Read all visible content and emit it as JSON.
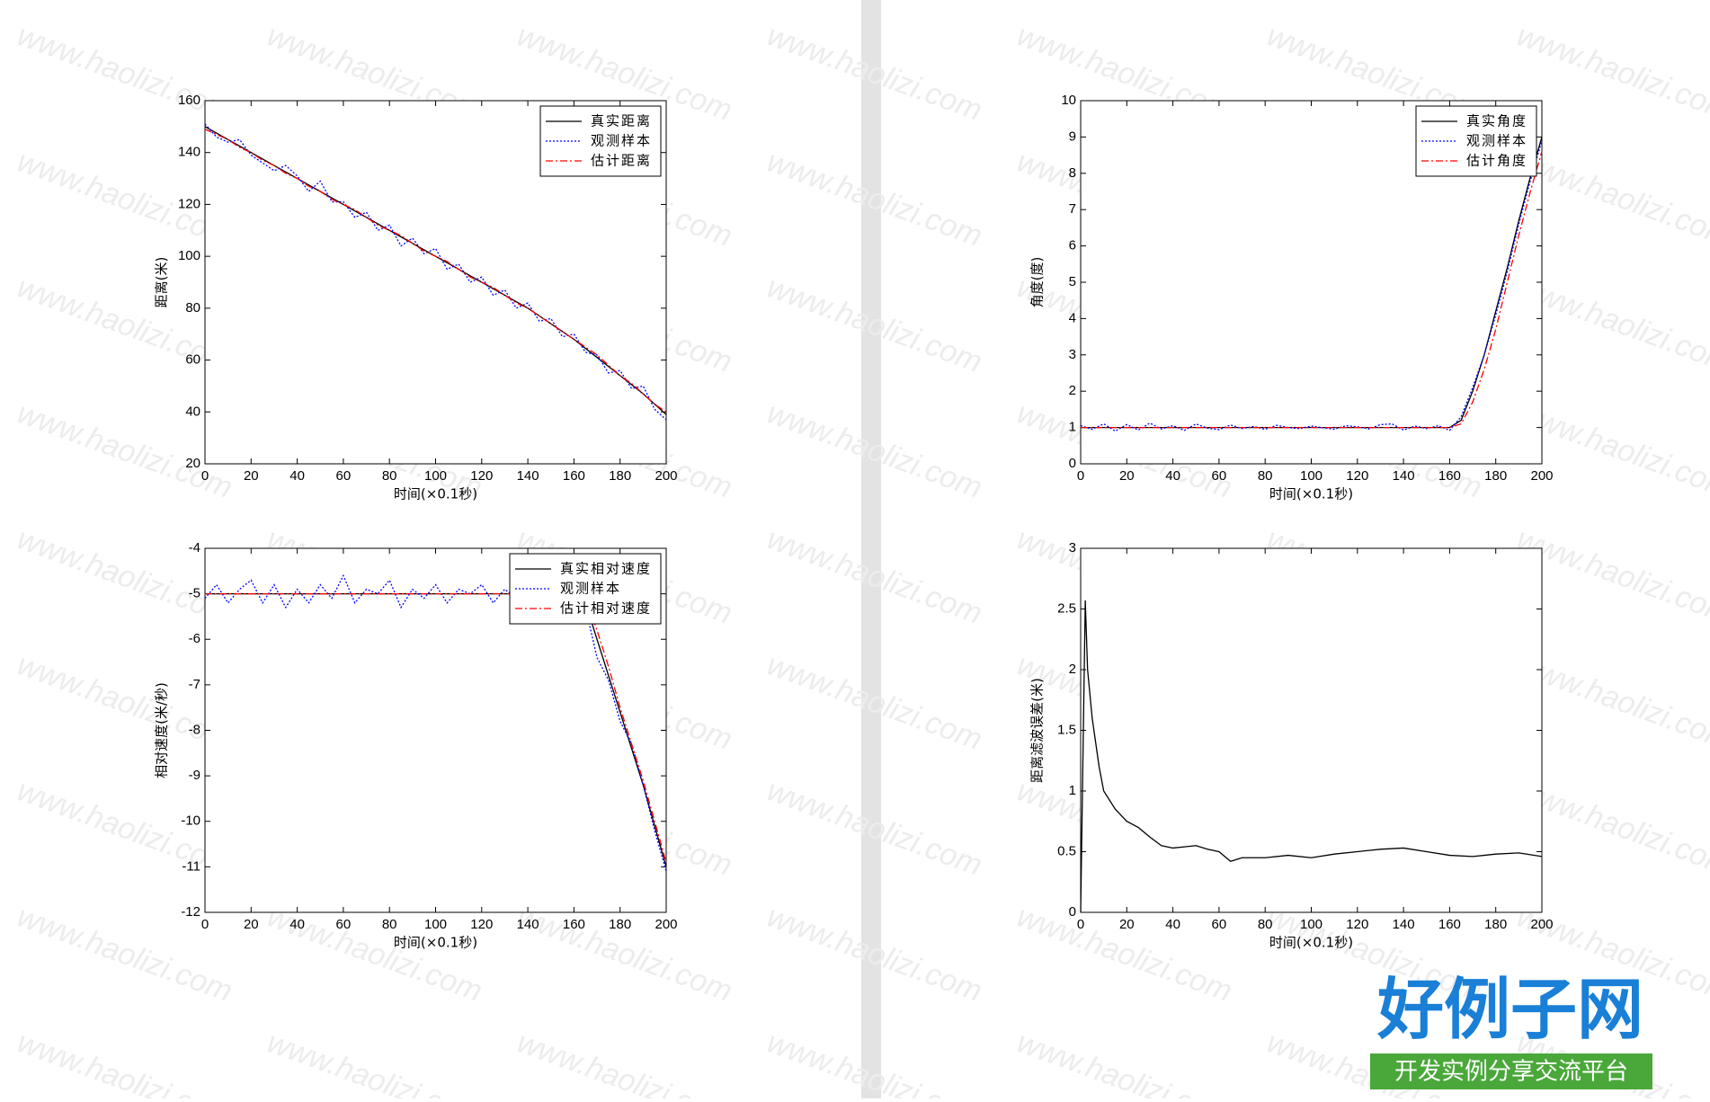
{
  "chart_data": [
    {
      "type": "line",
      "ylabel": "距离(米)",
      "xlabel": "时间(×0.1秒)",
      "xlim": [
        0,
        200
      ],
      "ylim": [
        20,
        160
      ],
      "xticks": [
        0,
        20,
        40,
        60,
        80,
        100,
        120,
        140,
        160,
        180,
        200
      ],
      "yticks": [
        20,
        40,
        60,
        80,
        100,
        120,
        140,
        160
      ],
      "legend": "upper right",
      "x": [
        0,
        5,
        10,
        15,
        20,
        25,
        30,
        35,
        40,
        45,
        50,
        55,
        60,
        65,
        70,
        75,
        80,
        85,
        90,
        95,
        100,
        105,
        110,
        115,
        120,
        125,
        130,
        135,
        140,
        145,
        150,
        155,
        160,
        165,
        170,
        175,
        180,
        185,
        190,
        195,
        200
      ],
      "series": [
        {
          "name": "真实距离",
          "color": "#000000",
          "style": "solid",
          "values": [
            150,
            147.5,
            145,
            142.5,
            140,
            137.5,
            135,
            132.5,
            130,
            127.5,
            125,
            122.5,
            120,
            117.5,
            115,
            112.5,
            110,
            107.5,
            105,
            102.5,
            100,
            97.5,
            95,
            92.5,
            90,
            87.5,
            85,
            82.5,
            80,
            77,
            74,
            71,
            68,
            64.5,
            61,
            57.5,
            54,
            50.5,
            47,
            43,
            39
          ]
        },
        {
          "name": "观测样本",
          "color": "#0000ff",
          "style": "dotted",
          "values": [
            151,
            146,
            144,
            145,
            139,
            136,
            133,
            135,
            131,
            125,
            129,
            121,
            121,
            115,
            117,
            110,
            112,
            104,
            107,
            101,
            103,
            95,
            97,
            90,
            92,
            85,
            87,
            80,
            82,
            75,
            76,
            69,
            70,
            63,
            62,
            55,
            56,
            49,
            50,
            41,
            37
          ]
        },
        {
          "name": "估计距离",
          "color": "#ff0000",
          "style": "dashdot",
          "values": [
            149,
            147,
            145,
            142,
            140,
            137,
            135,
            132,
            130,
            127,
            125,
            122,
            120,
            118,
            115,
            112,
            110,
            108,
            105,
            102,
            100,
            98,
            95,
            92,
            90,
            88,
            85,
            82,
            80,
            77,
            74,
            71,
            68,
            65,
            62,
            58,
            54,
            51,
            47,
            43,
            40
          ]
        }
      ]
    },
    {
      "type": "line",
      "ylabel": "角度(度)",
      "xlabel": "时间(×0.1秒)",
      "xlim": [
        0,
        200
      ],
      "ylim": [
        0,
        10
      ],
      "xticks": [
        0,
        20,
        40,
        60,
        80,
        100,
        120,
        140,
        160,
        180,
        200
      ],
      "yticks": [
        0,
        1,
        2,
        3,
        4,
        5,
        6,
        7,
        8,
        9,
        10
      ],
      "legend": "upper right",
      "x": [
        0,
        5,
        10,
        15,
        20,
        25,
        30,
        35,
        40,
        45,
        50,
        55,
        60,
        65,
        70,
        75,
        80,
        85,
        90,
        95,
        100,
        105,
        110,
        115,
        120,
        125,
        130,
        135,
        140,
        145,
        150,
        155,
        160,
        165,
        170,
        175,
        180,
        185,
        190,
        195,
        200
      ],
      "series": [
        {
          "name": "真实角度",
          "color": "#000000",
          "style": "solid",
          "values": [
            1,
            1,
            1,
            1,
            1,
            1,
            1,
            1,
            1,
            1,
            1,
            1,
            1,
            1,
            1,
            1,
            1,
            1,
            1,
            1,
            1,
            1,
            1,
            1,
            1,
            1,
            1,
            1,
            1,
            1,
            1,
            1,
            1,
            1.2,
            2.0,
            3.0,
            4.2,
            5.4,
            6.7,
            7.9,
            9.0
          ]
        },
        {
          "name": "观测样本",
          "color": "#0000ff",
          "style": "dotted",
          "values": [
            1.05,
            0.95,
            1.1,
            0.9,
            1.08,
            0.93,
            1.12,
            0.96,
            1.05,
            0.92,
            1.1,
            0.98,
            0.94,
            1.07,
            0.97,
            1.03,
            0.95,
            1.06,
            1.0,
            0.97,
            1.04,
            0.99,
            0.95,
            1.05,
            1.02,
            0.96,
            1.08,
            1.1,
            0.93,
            1.04,
            0.97,
            1.05,
            0.92,
            1.3,
            2.1,
            3.0,
            4.1,
            5.3,
            6.6,
            7.8,
            8.9
          ]
        },
        {
          "name": "估计角度",
          "color": "#ff0000",
          "style": "dashdot",
          "values": [
            1,
            1,
            1,
            1,
            1,
            1,
            1,
            1,
            1,
            1,
            1,
            1,
            1,
            1,
            1,
            1,
            1,
            1,
            1,
            1,
            1,
            1,
            1,
            1,
            1,
            1,
            1,
            1,
            1,
            1,
            1,
            1,
            1,
            1.1,
            1.7,
            2.6,
            3.7,
            5.0,
            6.3,
            7.5,
            8.6
          ]
        }
      ]
    },
    {
      "type": "line",
      "ylabel": "相对速度(米/秒)",
      "xlabel": "时间(×0.1秒)",
      "xlim": [
        0,
        200
      ],
      "ylim": [
        -12,
        -4
      ],
      "xticks": [
        0,
        20,
        40,
        60,
        80,
        100,
        120,
        140,
        160,
        180,
        200
      ],
      "yticks": [
        -12,
        -11,
        -10,
        -9,
        -8,
        -7,
        -6,
        -5,
        -4
      ],
      "legend": "upper right",
      "x": [
        0,
        5,
        10,
        15,
        20,
        25,
        30,
        35,
        40,
        45,
        50,
        55,
        60,
        65,
        70,
        75,
        80,
        85,
        90,
        95,
        100,
        105,
        110,
        115,
        120,
        125,
        130,
        135,
        140,
        145,
        150,
        155,
        160,
        165,
        170,
        175,
        180,
        185,
        190,
        195,
        200
      ],
      "series": [
        {
          "name": "真实相对速度",
          "color": "#000000",
          "style": "solid",
          "values": [
            -5,
            -5,
            -5,
            -5,
            -5,
            -5,
            -5,
            -5,
            -5,
            -5,
            -5,
            -5,
            -5,
            -5,
            -5,
            -5,
            -5,
            -5,
            -5,
            -5,
            -5,
            -5,
            -5,
            -5,
            -5,
            -5,
            -5,
            -5,
            -5,
            -5,
            -5,
            -5,
            -5,
            -5.2,
            -6.0,
            -6.8,
            -7.6,
            -8.4,
            -9.2,
            -10.1,
            -11
          ]
        },
        {
          "name": "观测样本",
          "color": "#0000ff",
          "style": "dotted",
          "values": [
            -5.1,
            -4.8,
            -5.2,
            -4.9,
            -4.7,
            -5.2,
            -4.8,
            -5.3,
            -4.9,
            -5.2,
            -4.8,
            -5.1,
            -4.6,
            -5.2,
            -4.9,
            -5.0,
            -4.7,
            -5.3,
            -4.9,
            -5.1,
            -4.8,
            -5.2,
            -4.9,
            -5.0,
            -4.8,
            -5.2,
            -4.9,
            -5.1,
            -4.8,
            -5.0,
            -4.9,
            -5.1,
            -5.0,
            -5.3,
            -6.4,
            -6.9,
            -7.8,
            -8.3,
            -9.2,
            -10.2,
            -11.1
          ]
        },
        {
          "name": "估计相对速度",
          "color": "#ff0000",
          "style": "dashdot",
          "values": [
            -5,
            -5,
            -5,
            -5,
            -5,
            -5,
            -5,
            -5,
            -5,
            -5,
            -5,
            -5,
            -5,
            -5,
            -5,
            -5,
            -5,
            -5,
            -5,
            -5,
            -5,
            -5,
            -5,
            -5,
            -5,
            -5,
            -5,
            -5,
            -5,
            -5,
            -5,
            -5,
            -5,
            -5.1,
            -5.8,
            -6.6,
            -7.5,
            -8.3,
            -9.1,
            -10.0,
            -10.9
          ]
        }
      ]
    },
    {
      "type": "line",
      "ylabel": "距离滤波误差(米)",
      "xlabel": "时间(×0.1秒)",
      "xlim": [
        0,
        200
      ],
      "ylim": [
        0,
        3
      ],
      "xticks": [
        0,
        20,
        40,
        60,
        80,
        100,
        120,
        140,
        160,
        180,
        200
      ],
      "yticks": [
        0,
        0.5,
        1,
        1.5,
        2,
        2.5,
        3
      ],
      "x": [
        0,
        2,
        3,
        5,
        8,
        10,
        15,
        20,
        25,
        30,
        35,
        40,
        45,
        50,
        55,
        60,
        65,
        70,
        80,
        90,
        100,
        110,
        120,
        130,
        140,
        150,
        160,
        170,
        180,
        190,
        200
      ],
      "series": [
        {
          "color": "#000000",
          "style": "solid",
          "values": [
            0,
            2.57,
            2.0,
            1.6,
            1.2,
            1.0,
            0.85,
            0.75,
            0.7,
            0.62,
            0.55,
            0.53,
            0.54,
            0.55,
            0.52,
            0.5,
            0.42,
            0.45,
            0.45,
            0.47,
            0.45,
            0.48,
            0.5,
            0.52,
            0.53,
            0.5,
            0.47,
            0.46,
            0.48,
            0.49,
            0.46
          ]
        }
      ]
    }
  ],
  "watermark": "www.haolizi.com",
  "logo": {
    "title": "好例子网",
    "subtitle": "开发实例分享交流平台"
  }
}
